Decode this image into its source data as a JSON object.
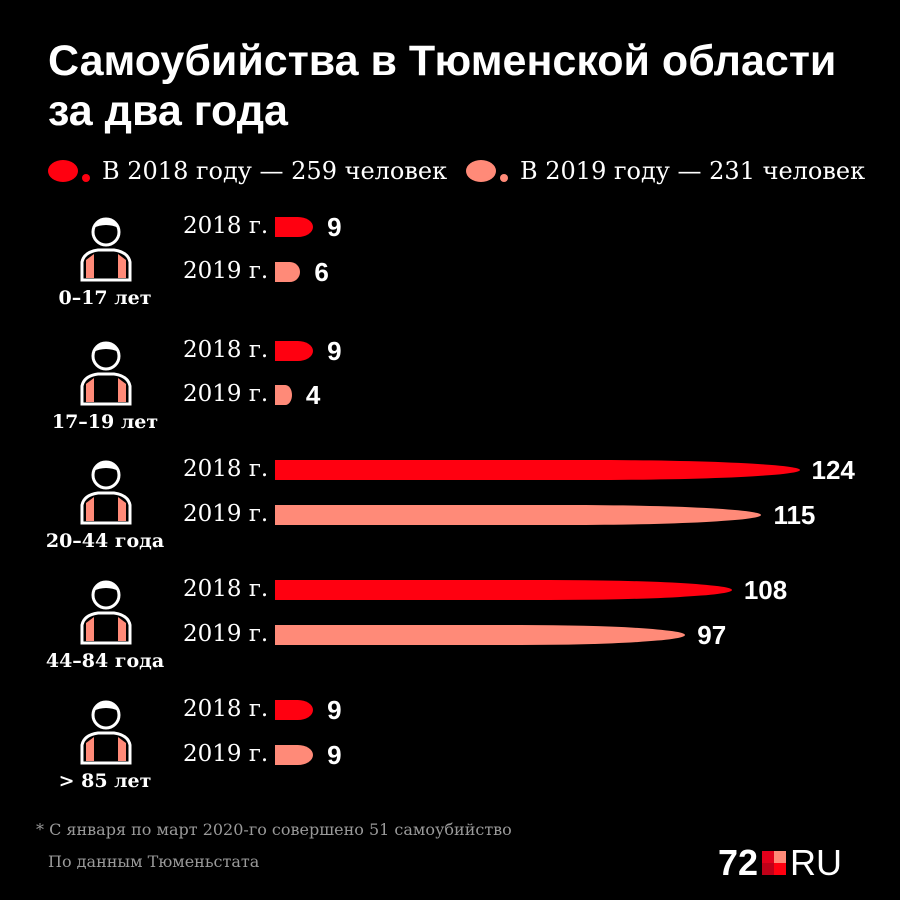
{
  "title": "Самоубийства в Тюменской области за два года",
  "legend": [
    {
      "label": "В 2018 году — 259 человек",
      "color": "#ff0010"
    },
    {
      "label": "В  2019 году — 231 человек",
      "color": "#ff8a78"
    }
  ],
  "chart_data": {
    "type": "bar",
    "orientation": "horizontal",
    "categories": [
      "0–17 лет",
      "17–19 лет",
      "20–44 года",
      "44–84 года",
      "> 85 лет"
    ],
    "series": [
      {
        "name": "2018 г.",
        "values": [
          9,
          9,
          124,
          108,
          9
        ]
      },
      {
        "name": "2019 г.",
        "values": [
          6,
          4,
          115,
          97,
          9
        ]
      }
    ]
  },
  "footnote": "* С января по март 2020-го совершено 51 самоубийство",
  "source": "По данным Тюменьстата",
  "logo": "72.RU",
  "logo_parts": {
    "num": "72",
    "ru": "RU"
  }
}
